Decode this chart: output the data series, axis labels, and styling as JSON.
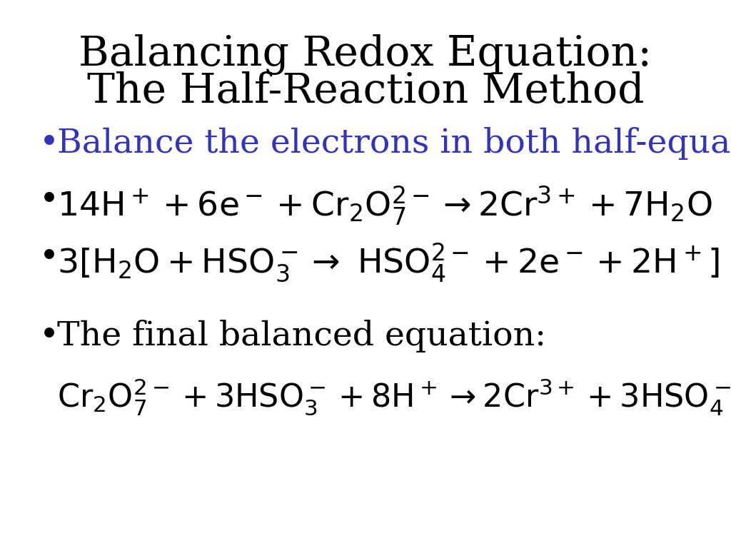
{
  "title_line1": "Balancing Redox Equation:",
  "title_line2": "The Half-Reaction Method",
  "title_color": "#000000",
  "title_fontsize": 42,
  "background_color": "#ffffff",
  "bullet_color": "#000000",
  "blue_color": "#3333bb",
  "bullet_fontsize": 34,
  "final_eq_fontsize": 32,
  "bullet1_text": "Balance the electrons in both half-equations:",
  "bullet4_text": "The final balanced equation:"
}
